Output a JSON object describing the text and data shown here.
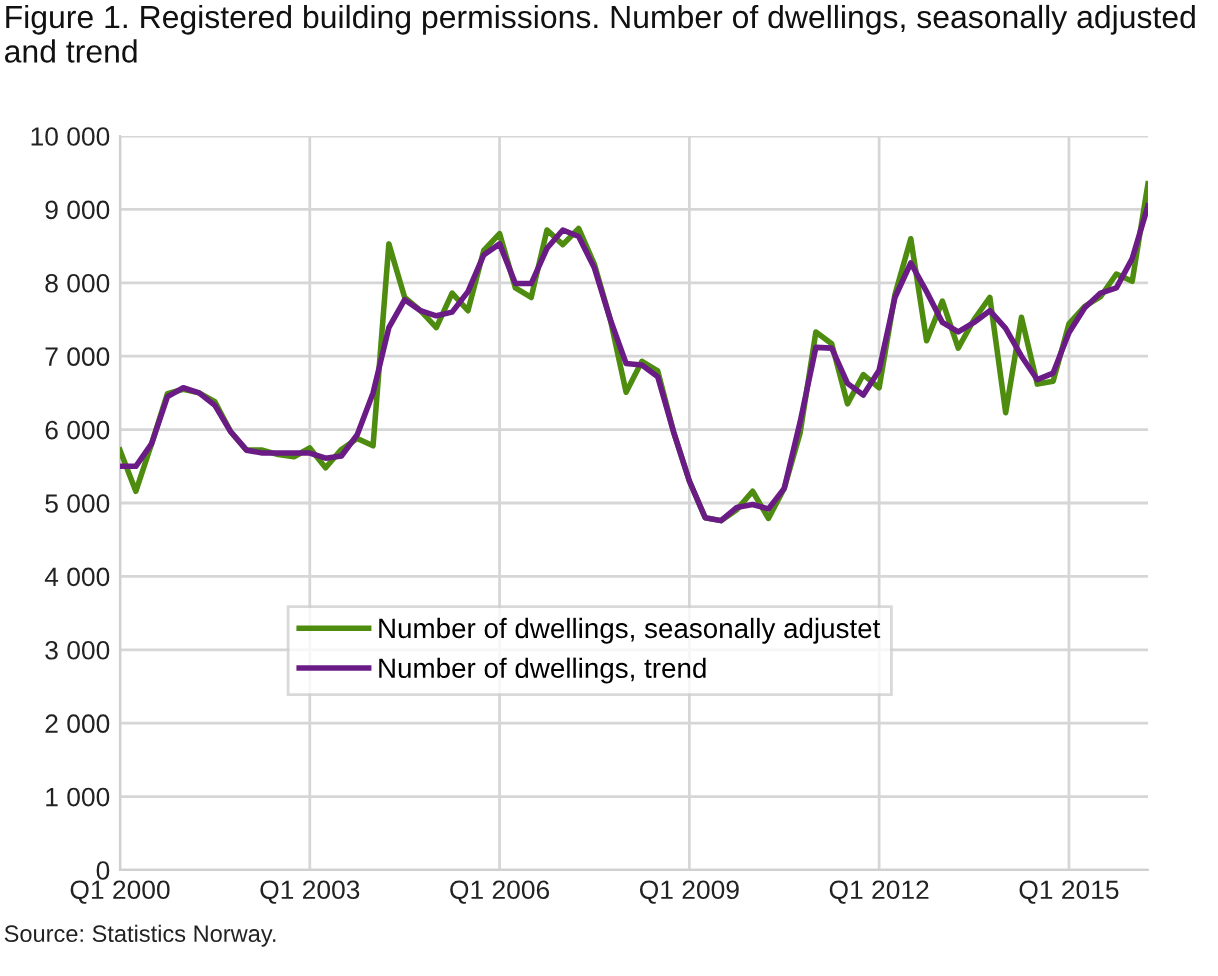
{
  "chart_data": {
    "type": "line",
    "title": "Figure 1. Registered building permissions. Number of dwellings, seasonally adjusted and trend",
    "categories": [
      "Q1 2000",
      null,
      null,
      null,
      null,
      null,
      null,
      null,
      null,
      null,
      null,
      null,
      "Q1 2003",
      null,
      null,
      null,
      null,
      null,
      null,
      null,
      null,
      null,
      null,
      null,
      "Q1 2006",
      null,
      null,
      null,
      null,
      null,
      null,
      null,
      null,
      null,
      null,
      null,
      "Q1 2009",
      null,
      null,
      null,
      null,
      null,
      null,
      null,
      null,
      null,
      null,
      null,
      "Q1 2012",
      null,
      null,
      null,
      null,
      null,
      null,
      null,
      null,
      null,
      null,
      null,
      "Q1 2015",
      null,
      null,
      null,
      null,
      null
    ],
    "series": [
      {
        "name": "Number of dwellings, seasonally adjustet",
        "color": "#4e8c0f",
        "values": [
          5720,
          5160,
          5810,
          6490,
          6550,
          6500,
          6380,
          5970,
          5720,
          5720,
          5660,
          5630,
          5750,
          5480,
          5730,
          5880,
          5780,
          8530,
          7800,
          7620,
          7390,
          7860,
          7620,
          8440,
          8670,
          7930,
          7800,
          8720,
          8520,
          8740,
          8250,
          7500,
          6510,
          6930,
          6800,
          5970,
          5300,
          4800,
          4760,
          4910,
          5160,
          4790,
          5200,
          5950,
          7330,
          7170,
          6350,
          6750,
          6570,
          7840,
          8600,
          7210,
          7750,
          7110,
          7500,
          7800,
          6230,
          7530,
          6620,
          6660,
          7440,
          7680,
          7810,
          8120,
          8020,
          9350
        ]
      },
      {
        "name": "Number of dwellings, trend",
        "color": "#6a1b86",
        "values": [
          5500,
          5500,
          5810,
          6450,
          6570,
          6500,
          6330,
          5970,
          5720,
          5680,
          5680,
          5680,
          5680,
          5610,
          5640,
          5930,
          6500,
          7390,
          7770,
          7620,
          7550,
          7600,
          7880,
          8380,
          8530,
          7990,
          7990,
          8470,
          8720,
          8630,
          8200,
          7500,
          6900,
          6880,
          6720,
          5970,
          5300,
          4800,
          4760,
          4940,
          4980,
          4920,
          5200,
          6100,
          7120,
          7110,
          6630,
          6470,
          6810,
          7800,
          8270,
          7880,
          7460,
          7330,
          7460,
          7620,
          7380,
          7000,
          6680,
          6770,
          7320,
          7660,
          7860,
          7930,
          8330,
          9050
        ]
      }
    ],
    "ylim": [
      0,
      10000
    ],
    "yticks": [
      {
        "value": 0,
        "label": "0"
      },
      {
        "value": 1000,
        "label": "1 000"
      },
      {
        "value": 2000,
        "label": "2 000"
      },
      {
        "value": 3000,
        "label": "3 000"
      },
      {
        "value": 4000,
        "label": "4 000"
      },
      {
        "value": 5000,
        "label": "5 000"
      },
      {
        "value": 6000,
        "label": "6 000"
      },
      {
        "value": 7000,
        "label": "7 000"
      },
      {
        "value": 8000,
        "label": "8 000"
      },
      {
        "value": 9000,
        "label": "9 000"
      },
      {
        "value": 10000,
        "label": "10 000"
      }
    ],
    "grid": true,
    "legend": "bottom left",
    "marker": "none",
    "line_style": "solid",
    "annotations": [
      "Source: Statistics Norway."
    ]
  }
}
